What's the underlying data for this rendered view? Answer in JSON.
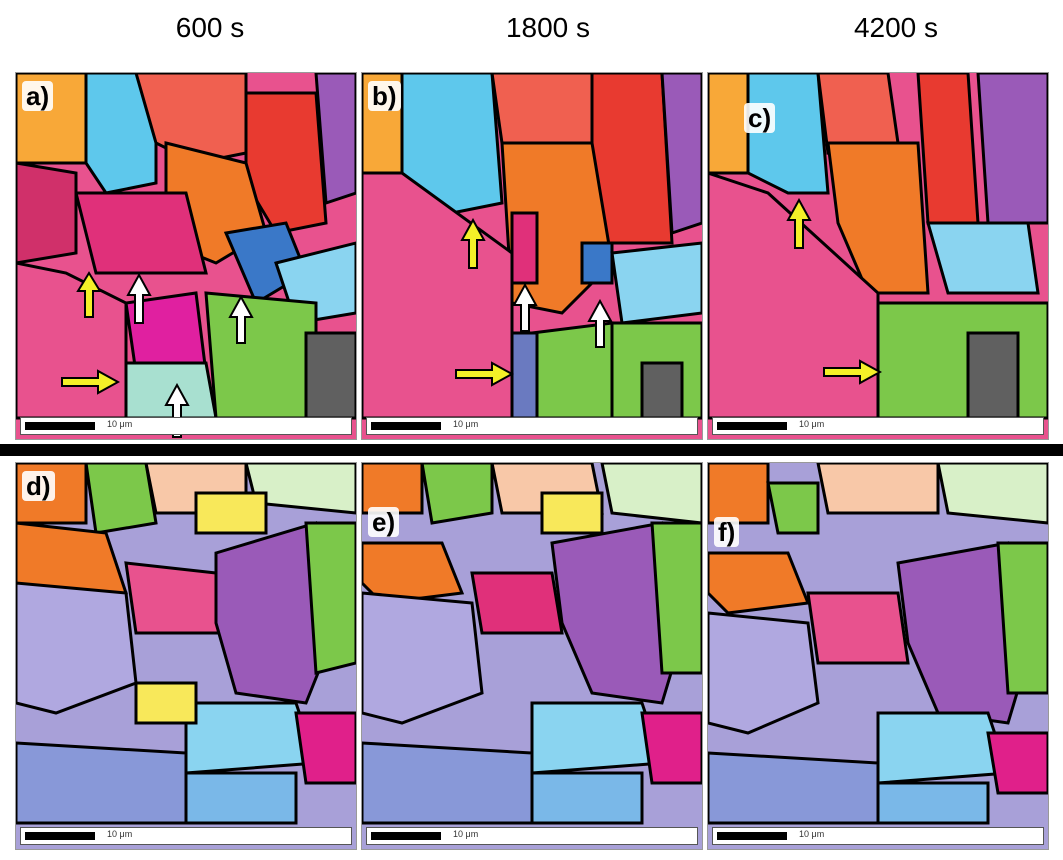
{
  "time_labels": [
    "600 s",
    "1800 s",
    "4200 s"
  ],
  "panels": [
    {
      "letter": "a)",
      "scale": "10 μm"
    },
    {
      "letter": "b)",
      "scale": "10 μm"
    },
    {
      "letter": "c)",
      "scale": "10 μm"
    },
    {
      "letter": "d)",
      "scale": "10 μm"
    },
    {
      "letter": "e)",
      "scale": "10 μm"
    },
    {
      "letter": "f)",
      "scale": "10 μm"
    }
  ],
  "colors": {
    "pink": "#e8528e",
    "magenta": "#e0208a",
    "orange": "#f07a28",
    "red": "#e83a30",
    "lightblue": "#5ec8ec",
    "green": "#7cc84a",
    "purple": "#9a5ab8",
    "lavender": "#a8a0d8",
    "yellow": "#f8e85a",
    "arrow_yellow": "#f4f028",
    "arrow_white": "#ffffff"
  }
}
